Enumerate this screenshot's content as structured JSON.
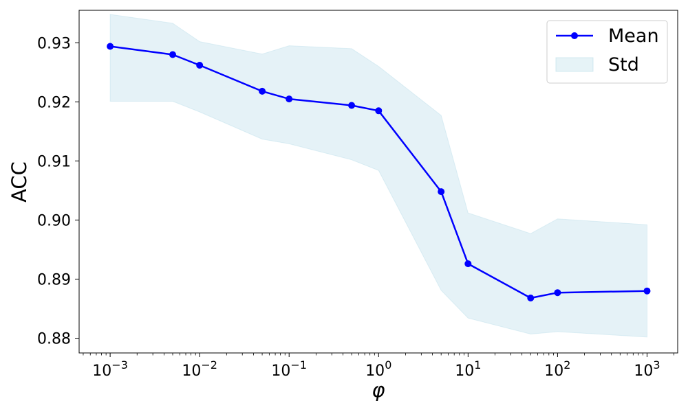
{
  "chart_data": {
    "type": "line",
    "xlabel": "φ",
    "ylabel": "ACC",
    "x_scale": "log",
    "xlim": [
      0.00045,
      2200
    ],
    "ylim": [
      0.8775,
      0.9355
    ],
    "grid": false,
    "legend_position": "top-right",
    "x": [
      0.001,
      0.005,
      0.01,
      0.05,
      0.1,
      0.5,
      1,
      5,
      10,
      50,
      100,
      1000
    ],
    "series": [
      {
        "name": "Mean",
        "kind": "line-markers",
        "color": "#0000ff",
        "values": [
          0.9294,
          0.928,
          0.9262,
          0.9218,
          0.9205,
          0.9194,
          0.9185,
          0.9048,
          0.8926,
          0.8868,
          0.8877,
          0.888
        ]
      },
      {
        "name": "Std",
        "kind": "band",
        "color": "#add8e6",
        "upper": [
          0.9348,
          0.9333,
          0.9302,
          0.9281,
          0.9295,
          0.929,
          0.926,
          0.9177,
          0.9012,
          0.8977,
          0.9002,
          0.8992
        ],
        "lower": [
          0.9201,
          0.9201,
          0.9183,
          0.9137,
          0.9129,
          0.9102,
          0.9084,
          0.8881,
          0.8834,
          0.8807,
          0.8811,
          0.8802
        ]
      }
    ],
    "y_ticks": [
      {
        "value": 0.88,
        "label": "0.88"
      },
      {
        "value": 0.89,
        "label": "0.89"
      },
      {
        "value": 0.9,
        "label": "0.90"
      },
      {
        "value": 0.91,
        "label": "0.91"
      },
      {
        "value": 0.92,
        "label": "0.92"
      },
      {
        "value": 0.93,
        "label": "0.93"
      }
    ],
    "x_ticks": [
      {
        "value": 0.001,
        "base": "10",
        "exp": "−3"
      },
      {
        "value": 0.01,
        "base": "10",
        "exp": "−2"
      },
      {
        "value": 0.1,
        "base": "10",
        "exp": "−1"
      },
      {
        "value": 1,
        "base": "10",
        "exp": "0"
      },
      {
        "value": 10,
        "base": "10",
        "exp": "1"
      },
      {
        "value": 100,
        "base": "10",
        "exp": "2"
      },
      {
        "value": 1000,
        "base": "10",
        "exp": "3"
      }
    ]
  }
}
